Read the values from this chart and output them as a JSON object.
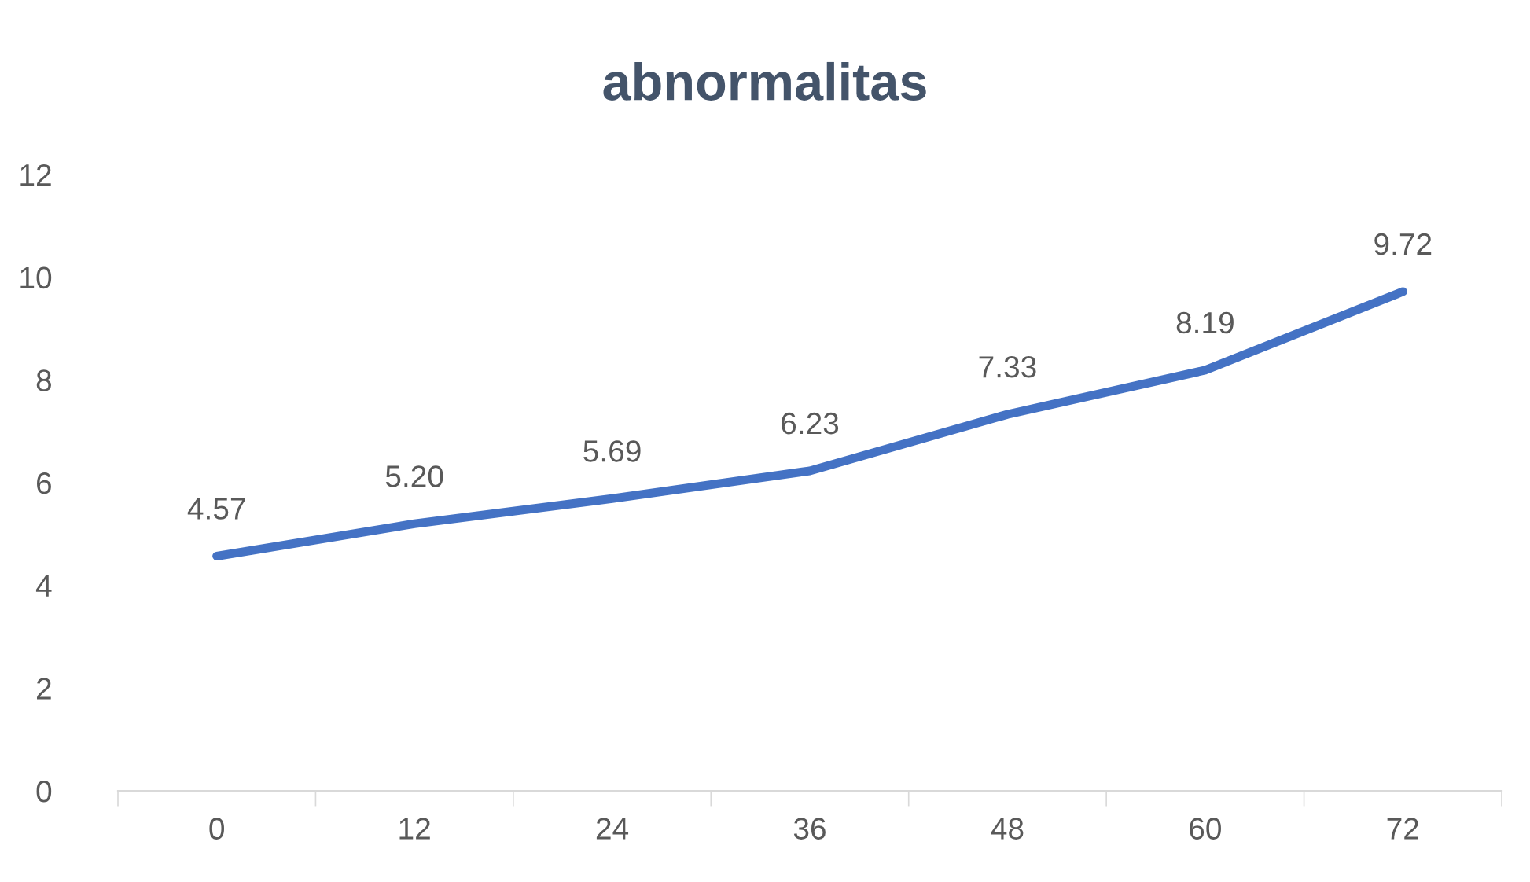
{
  "chart_data": {
    "type": "line",
    "title": "abnormalitas",
    "categories": [
      "0",
      "12",
      "24",
      "36",
      "48",
      "60",
      "72"
    ],
    "series": [
      {
        "color": "#4472c4",
        "values": [
          4.57,
          5.2,
          5.69,
          6.23,
          7.33,
          8.19,
          9.72
        ],
        "value_labels": [
          "4.57",
          "5.20",
          "5.69",
          "6.23",
          "7.33",
          "8.19",
          "9.72"
        ]
      }
    ],
    "ylim": [
      0,
      12
    ],
    "yticks": [
      0,
      2,
      4,
      6,
      8,
      10,
      12
    ],
    "grid": false,
    "marker": "none",
    "line_style": "solid"
  }
}
